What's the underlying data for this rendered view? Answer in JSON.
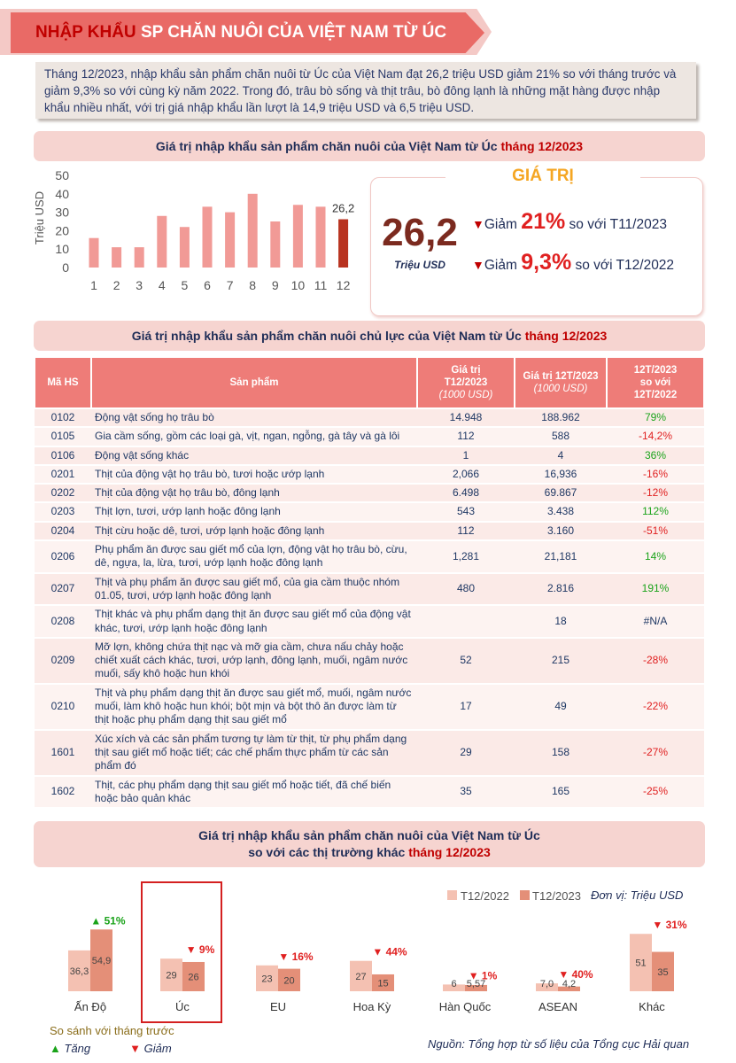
{
  "header": {
    "title_highlight": "NHẬP KHẨU",
    "title_rest": " SP CHĂN NUÔI CỦA VIỆT NAM TỪ ÚC"
  },
  "summary": "Tháng 12/2023, nhập khẩu sản phẩm chăn nuôi từ Úc của Việt Nam đạt 26,2 triệu USD giảm 21% so với tháng trước và giảm 9,3% so với cùng kỳ năm 2022. Trong đó, trâu bò sống và thịt trâu, bò đông lạnh là những mặt hàng được nhập khẩu nhiều nhất, với trị giá nhập khẩu lần lượt là 14,9 triệu USD và 6,5 triệu USD.",
  "section1": {
    "title": "Giá trị nhập khẩu sản phẩm chăn nuôi của Việt Nam từ Úc ",
    "highlight": "tháng 12/2023"
  },
  "value_card": {
    "tag": "GIÁ TRỊ",
    "value": "26,2",
    "unit": "Triệu USD",
    "change1": {
      "prefix": "Giảm ",
      "pct": "21%",
      "suffix": " so với T11/2023"
    },
    "change2": {
      "prefix": "Giảm ",
      "pct": "9,3%",
      "suffix": " so với T12/2022"
    },
    "down_symbol": "▼"
  },
  "section2": {
    "title": "Giá trị nhập khẩu sản phẩm chăn nuôi chủ lực của Việt Nam từ Úc ",
    "highlight": "tháng 12/2023"
  },
  "table": {
    "headers": {
      "hs": "Mã HS",
      "product": "Sản phẩm",
      "v1_line1": "Giá trị",
      "v1_line2": "T12/2023",
      "v1_unit": "(1000 USD)",
      "v2_line1": "Giá trị 12T/2023",
      "v2_unit": "(1000 USD)",
      "cmp_line1": "12T/2023",
      "cmp_line2": "so với",
      "cmp_line3": "12T/2022"
    },
    "rows": [
      {
        "hs": "0102",
        "product": "Động vật sống họ trâu bò",
        "t12": "14.948",
        "y12": "188.962",
        "cmp": "79%",
        "dir": "pos"
      },
      {
        "hs": "0105",
        "product": "Gia cầm sống, gồm các loại gà, vịt, ngan, ngỗng, gà tây và gà lôi",
        "t12": "112",
        "y12": "588",
        "cmp": "-14,2%",
        "dir": "neg"
      },
      {
        "hs": "0106",
        "product": "Động vật sống khác",
        "t12": "1",
        "y12": "4",
        "cmp": "36%",
        "dir": "pos"
      },
      {
        "hs": "0201",
        "product": "Thịt của động vật họ trâu bò, tươi hoặc ướp lạnh",
        "t12": "2,066",
        "y12": "16,936",
        "cmp": "-16%",
        "dir": "neg"
      },
      {
        "hs": "0202",
        "product": "Thịt của động vật họ trâu bò, đông lạnh",
        "t12": "6.498",
        "y12": "69.867",
        "cmp": "-12%",
        "dir": "neg"
      },
      {
        "hs": "0203",
        "product": "Thịt lợn, tươi, ướp lạnh hoặc đông lạnh",
        "t12": "543",
        "y12": "3.438",
        "cmp": "112%",
        "dir": "pos"
      },
      {
        "hs": "0204",
        "product": "Thịt cừu hoặc dê, tươi, ướp lạnh hoặc đông lạnh",
        "t12": "112",
        "y12": "3.160",
        "cmp": "-51%",
        "dir": "neg"
      },
      {
        "hs": "0206",
        "product": "Phụ phẩm ăn được sau giết mổ của lợn, động vật họ trâu bò, cừu, dê, ngựa, la, lừa, tươi, ướp lạnh hoặc đông lạnh",
        "t12": "1,281",
        "y12": "21,181",
        "cmp": "14%",
        "dir": "pos"
      },
      {
        "hs": "0207",
        "product": "Thịt và phụ phẩm ăn được sau giết mổ, của gia cầm thuộc nhóm 01.05, tươi, ướp lạnh hoặc đông lạnh",
        "t12": "480",
        "y12": "2.816",
        "cmp": "191%",
        "dir": "pos"
      },
      {
        "hs": "0208",
        "product": "Thịt khác và phụ phẩm dạng thịt ăn được sau giết mổ của động vật khác, tươi, ướp lạnh hoặc đông lạnh",
        "t12": "",
        "y12": "18",
        "cmp": "#N/A",
        "dir": "na"
      },
      {
        "hs": "0209",
        "product": "Mỡ lợn, không chứa thịt nạc và mỡ gia cầm, chưa nấu chảy hoặc chiết xuất cách khác, tươi, ướp lạnh, đông lạnh, muối, ngâm nước muối, sấy khô hoặc hun khói",
        "t12": "52",
        "y12": "215",
        "cmp": "-28%",
        "dir": "neg"
      },
      {
        "hs": "0210",
        "product": "Thịt và phụ phẩm dạng thịt ăn được sau giết mổ, muối, ngâm nước muối, làm khô hoặc hun khói; bột mịn và bột thô ăn được làm từ thịt hoặc phụ phẩm dạng thịt sau giết mổ",
        "t12": "17",
        "y12": "49",
        "cmp": "-22%",
        "dir": "neg"
      },
      {
        "hs": "1601",
        "product": "Xúc xích và các sản phẩm tương tự làm từ thịt, từ phụ phẩm dạng thịt sau giết mổ hoặc tiết; các chế phẩm thực phẩm từ các sản phẩm đó",
        "t12": "29",
        "y12": "158",
        "cmp": "-27%",
        "dir": "neg"
      },
      {
        "hs": "1602",
        "product": "Thịt, các phụ phẩm dạng thịt sau giết mổ hoặc tiết, đã chế biến hoặc bảo quản khác",
        "t12": "35",
        "y12": "165",
        "cmp": "-25%",
        "dir": "neg"
      }
    ]
  },
  "section3": {
    "line1": "Giá trị nhập khẩu sản phẩm chăn nuôi của Việt Nam từ Úc",
    "line2": "so với các thị trường khác ",
    "highlight": "tháng 12/2023"
  },
  "unit_note": "Đơn vị: Triệu USD",
  "legend_compare": {
    "title": "So sánh với tháng trước",
    "up": "Tăng",
    "down": "Giảm",
    "up_symbol": "▲",
    "down_symbol": "▼"
  },
  "source": "Nguồn: Tổng hợp từ số liệu của Tổng cục Hải quan",
  "colors": {
    "bar_light": "#f19a96",
    "bar_dark": "#b8321f",
    "bar_2022": "#f4c1b2",
    "bar_2023": "#e48f78",
    "up": "#1aa31a",
    "down": "#e02020"
  },
  "chart_data": [
    {
      "type": "bar",
      "x": [
        "1",
        "2",
        "3",
        "4",
        "5",
        "6",
        "7",
        "8",
        "9",
        "10",
        "11",
        "12"
      ],
      "values": [
        16,
        11,
        11,
        28,
        22,
        33,
        30,
        40,
        25,
        34,
        33,
        26.2
      ],
      "data_labels": {
        "11": "26,2"
      },
      "ylabel": "Triệu USD",
      "yticks": [
        "0",
        "10",
        "20",
        "30",
        "40",
        "50"
      ],
      "ylim": [
        0,
        50
      ],
      "grid": false
    },
    {
      "type": "bar",
      "categories": [
        "Ấn Độ",
        "Úc",
        "EU",
        "Hoa Kỳ",
        "Hàn Quốc",
        "ASEAN",
        "Khác"
      ],
      "series": [
        {
          "name": "T12/2022",
          "values": [
            36.3,
            29,
            23,
            27,
            6,
            7.0,
            51
          ],
          "labels": [
            "36,3",
            "29",
            "23",
            "27",
            "6",
            "7,0",
            "51"
          ]
        },
        {
          "name": "T12/2023",
          "values": [
            54.9,
            26,
            20,
            15,
            5.57,
            4.2,
            35
          ],
          "labels": [
            "54,9",
            "26",
            "20",
            "15",
            "5,57",
            "4,2",
            "35"
          ]
        }
      ],
      "changes": [
        {
          "dir": "up",
          "label": "51%"
        },
        {
          "dir": "down",
          "label": "9%"
        },
        {
          "dir": "down",
          "label": "16%"
        },
        {
          "dir": "down",
          "label": "44%"
        },
        {
          "dir": "down",
          "label": "1%"
        },
        {
          "dir": "down",
          "label": "40%"
        },
        {
          "dir": "down",
          "label": "31%"
        }
      ],
      "grid": false
    }
  ]
}
